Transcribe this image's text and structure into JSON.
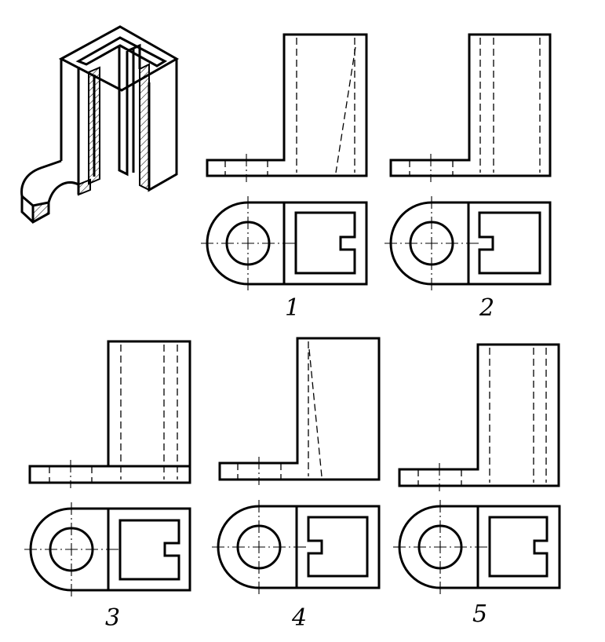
{
  "options": [
    {
      "id": "1",
      "label": "1"
    },
    {
      "id": "2",
      "label": "2"
    },
    {
      "id": "3",
      "label": "3"
    },
    {
      "id": "4",
      "label": "4"
    },
    {
      "id": "5",
      "label": "5"
    }
  ],
  "colors": {
    "line": "#000000",
    "background": "#ffffff"
  }
}
